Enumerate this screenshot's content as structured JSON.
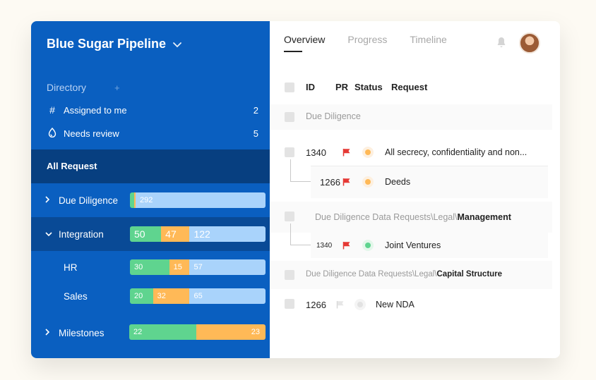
{
  "sidebar": {
    "title": "Blue Sugar Pipeline",
    "directory_label": "Directory",
    "items": [
      {
        "label": "Assigned to me",
        "count": "2",
        "icon": "hash-icon"
      },
      {
        "label": "Needs review",
        "count": "5",
        "icon": "droplet-icon"
      }
    ],
    "all_request_label": "All Request",
    "groups": [
      {
        "name": "Due Diligence",
        "expanded": false,
        "segments": [
          "9",
          "1",
          "292"
        ],
        "fractions": [
          0.03,
          0.004,
          0.966
        ]
      },
      {
        "name": "Integration",
        "expanded": true,
        "segments": [
          "50",
          "47",
          "122"
        ],
        "fractions": [
          0.23,
          0.21,
          0.56
        ]
      },
      {
        "name": "HR",
        "segments": [
          "30",
          "15",
          "57"
        ],
        "fractions": [
          0.29,
          0.15,
          0.56
        ]
      },
      {
        "name": "Sales",
        "segments": [
          "20",
          "32",
          "65"
        ],
        "fractions": [
          0.17,
          0.27,
          0.56
        ]
      },
      {
        "name": "Milestones",
        "expanded": false,
        "segments": [
          "22",
          "23"
        ],
        "fractions": [
          0.49,
          0.51
        ]
      }
    ],
    "colors": {
      "sidebar": "#0a5fc0",
      "green": "#5fd48f",
      "orange": "#ffb957",
      "blue": "#a9d3fb"
    }
  },
  "tabs": [
    "Overview",
    "Progress",
    "Timeline"
  ],
  "table": {
    "headers": {
      "id": "ID",
      "pr": "PR",
      "status": "Status",
      "request": "Request"
    },
    "sections": {
      "s1": "Due Diligence",
      "s2_prefix": "Due Diligence Data Requests\\Legal\\",
      "s2_bold": "Management",
      "s3_prefix": "Due Diligence Data Requests\\Legal\\",
      "s3_bold": "Capital Structure"
    },
    "rows": [
      {
        "id": "1340",
        "request": "All secrecy, confidentiality and non...",
        "flag": "red",
        "status": "orange"
      },
      {
        "id": "1266",
        "request": "Deeds",
        "flag": "red",
        "status": "orange"
      },
      {
        "id": "1340",
        "request": "Joint Ventures",
        "flag": "red",
        "status": "green"
      },
      {
        "id": "1266",
        "request": "New NDA",
        "flag": "grey",
        "status": "grey"
      }
    ]
  }
}
